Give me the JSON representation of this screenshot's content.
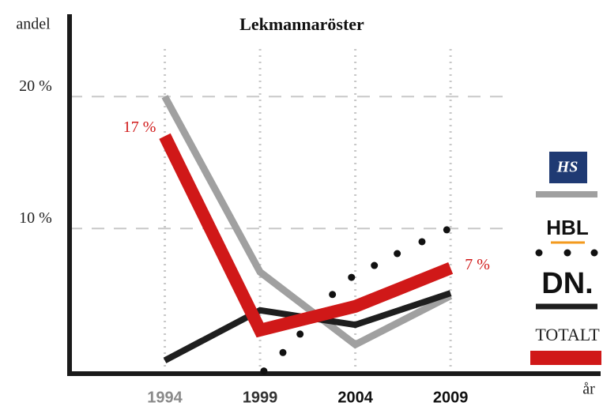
{
  "chart_data": {
    "type": "line",
    "title": "Lekmannaröster",
    "y_label": "andel",
    "x_label": "år",
    "x": [
      1994,
      1999,
      2004,
      2009
    ],
    "xlim": [
      1989,
      2017
    ],
    "xticks": [
      1994,
      1999,
      2004,
      2009
    ],
    "ylim": [
      -1,
      26
    ],
    "yticks": [
      {
        "value": 10,
        "label": "10 %"
      },
      {
        "value": 20,
        "label": "20 %"
      }
    ],
    "grid": true,
    "legend": "right",
    "series": [
      {
        "name": "HS",
        "color": "#a0a0a0",
        "values": [
          20,
          6.7,
          1.2,
          4.9
        ]
      },
      {
        "name": "HBL",
        "color": "#111111",
        "style": "dotted",
        "x": [
          1999.2,
          2000.2,
          2001.1,
          2002.8,
          2003.8,
          2005.0,
          2006.2,
          2007.5,
          2008.8
        ],
        "values": [
          -0.8,
          0.6,
          2.0,
          5.0,
          6.3,
          7.2,
          8.1,
          9.0,
          9.9
        ]
      },
      {
        "name": "DN.",
        "color": "#1e1e1e",
        "values": [
          0,
          3.8,
          2.7,
          5.1
        ]
      },
      {
        "name": "TOTALT",
        "color": "#d01818",
        "values": [
          17,
          2.3,
          4.1,
          7
        ],
        "value_labels": [
          "17 %",
          null,
          null,
          "7 %"
        ]
      }
    ]
  }
}
